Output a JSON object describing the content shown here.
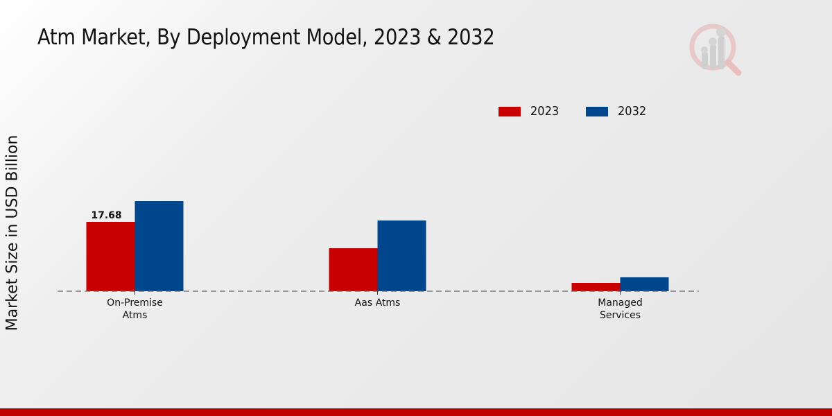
{
  "header": {
    "title": "Atm Market, By Deployment Model, 2023 & 2032"
  },
  "logo": {
    "icon": "magnifier-bar-chart-logo-icon"
  },
  "colors": {
    "series_2023": "#c80000",
    "series_2032": "#00468c",
    "footer": "#c00000"
  },
  "legend": {
    "items": [
      {
        "label": "2023",
        "color": "#c80000"
      },
      {
        "label": "2032",
        "color": "#00468c"
      }
    ]
  },
  "chart_data": {
    "type": "bar",
    "title": "Atm Market, By Deployment Model, 2023 & 2032",
    "xlabel": "",
    "ylabel": "Market Size in USD Billion",
    "categories": [
      "On-Premise Atms",
      "Aas Atms",
      "Managed Services"
    ],
    "category_lines": [
      [
        "On-Premise",
        "Atms"
      ],
      [
        "Aas Atms"
      ],
      [
        "Managed",
        "Services"
      ]
    ],
    "series": [
      {
        "name": "2023",
        "color": "#c80000",
        "values": [
          17.68,
          10.96,
          2.12
        ]
      },
      {
        "name": "2032",
        "color": "#00468c",
        "values": [
          22.98,
          18.03,
          3.54
        ]
      }
    ],
    "data_labels": [
      {
        "series": "2023",
        "category": "On-Premise Atms",
        "text": "17.68"
      }
    ],
    "ylim": [
      0,
      23.5
    ],
    "grid": false,
    "baseline": "dashed",
    "legend_position": "top-right"
  }
}
